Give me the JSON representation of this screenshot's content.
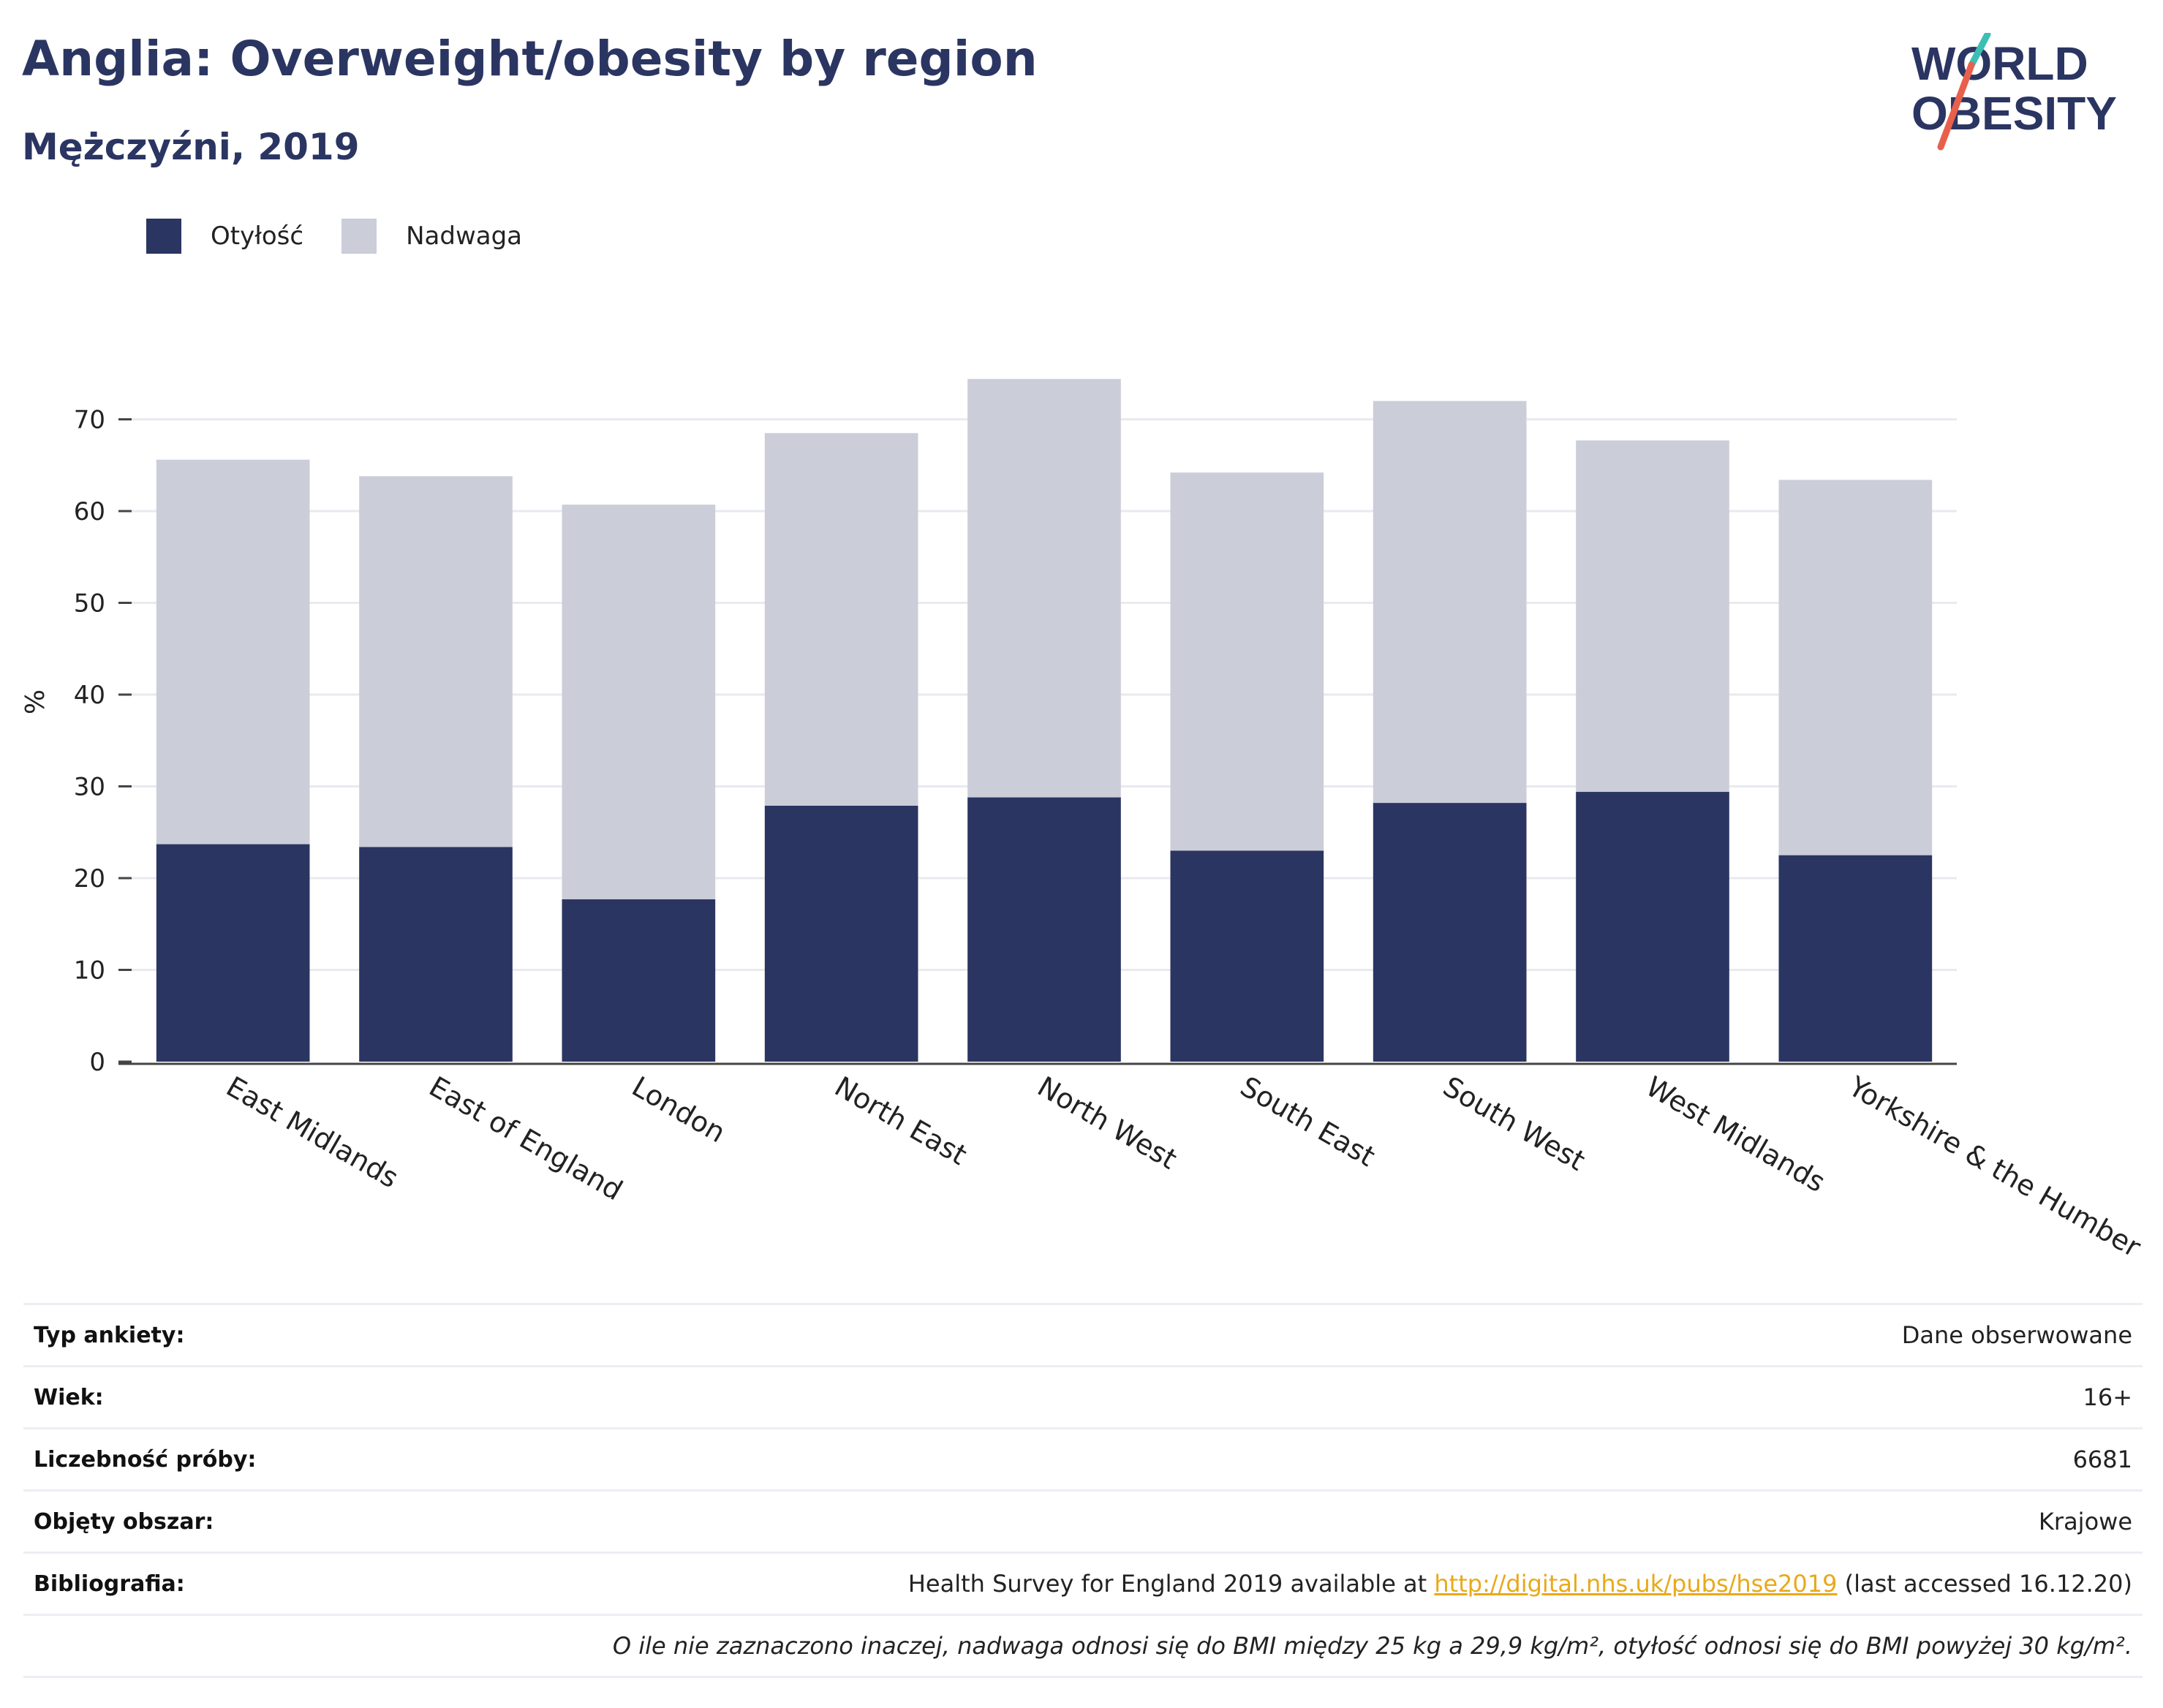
{
  "header": {
    "title": "Anglia: Overweight/obesity by region",
    "subtitle": "Mężczyźni, 2019"
  },
  "logo": {
    "line1": "WORLD",
    "line2": "OBESITY",
    "colors": {
      "text": "#2b3562",
      "slash_orange": "#e8604c",
      "slash_teal": "#3bbfb4"
    }
  },
  "legend": {
    "items": [
      {
        "label": "Otyłość",
        "color": "#2b3562"
      },
      {
        "label": "Nadwaga",
        "color": "#cbcdd9"
      }
    ]
  },
  "chart_data": {
    "type": "bar",
    "stacked": true,
    "categories": [
      "East Midlands",
      "East of England",
      "London",
      "North East",
      "North West",
      "South East",
      "South West",
      "West Midlands",
      "Yorkshire & the Humber"
    ],
    "series": [
      {
        "name": "Otyłość",
        "color": "#2b3562",
        "values": [
          23.7,
          23.4,
          17.7,
          27.9,
          28.8,
          23.0,
          28.2,
          29.4,
          22.5
        ]
      },
      {
        "name": "Nadwaga",
        "color": "#cbcdd9",
        "values": [
          41.9,
          40.4,
          43.0,
          40.6,
          45.6,
          41.2,
          43.8,
          38.3,
          40.9
        ]
      }
    ],
    "title": "",
    "xlabel": "",
    "ylabel": "%",
    "ylim": [
      0,
      80
    ],
    "yticks": [
      0,
      10,
      20,
      30,
      40,
      50,
      60,
      70
    ],
    "grid": true,
    "legend_position": "top-left"
  },
  "meta": {
    "rows": [
      {
        "key": "Typ ankiety:",
        "value": "Dane obserwowane"
      },
      {
        "key": "Wiek:",
        "value": "16+"
      },
      {
        "key": "Liczebność próby:",
        "value": "6681"
      },
      {
        "key": "Objęty obszar:",
        "value": "Krajowe"
      }
    ],
    "bibliography": {
      "key": "Bibliografia:",
      "prefix": "Health Survey for England 2019 available at ",
      "link": "http://digital.nhs.uk/pubs/hse2019",
      "suffix": " (last accessed 16.12.20)"
    },
    "note": "O ile nie zaznaczono inaczej, nadwaga odnosi się do BMI między 25 kg a 29,9 kg/m², otyłość odnosi się do BMI powyżej 30 kg/m²."
  }
}
